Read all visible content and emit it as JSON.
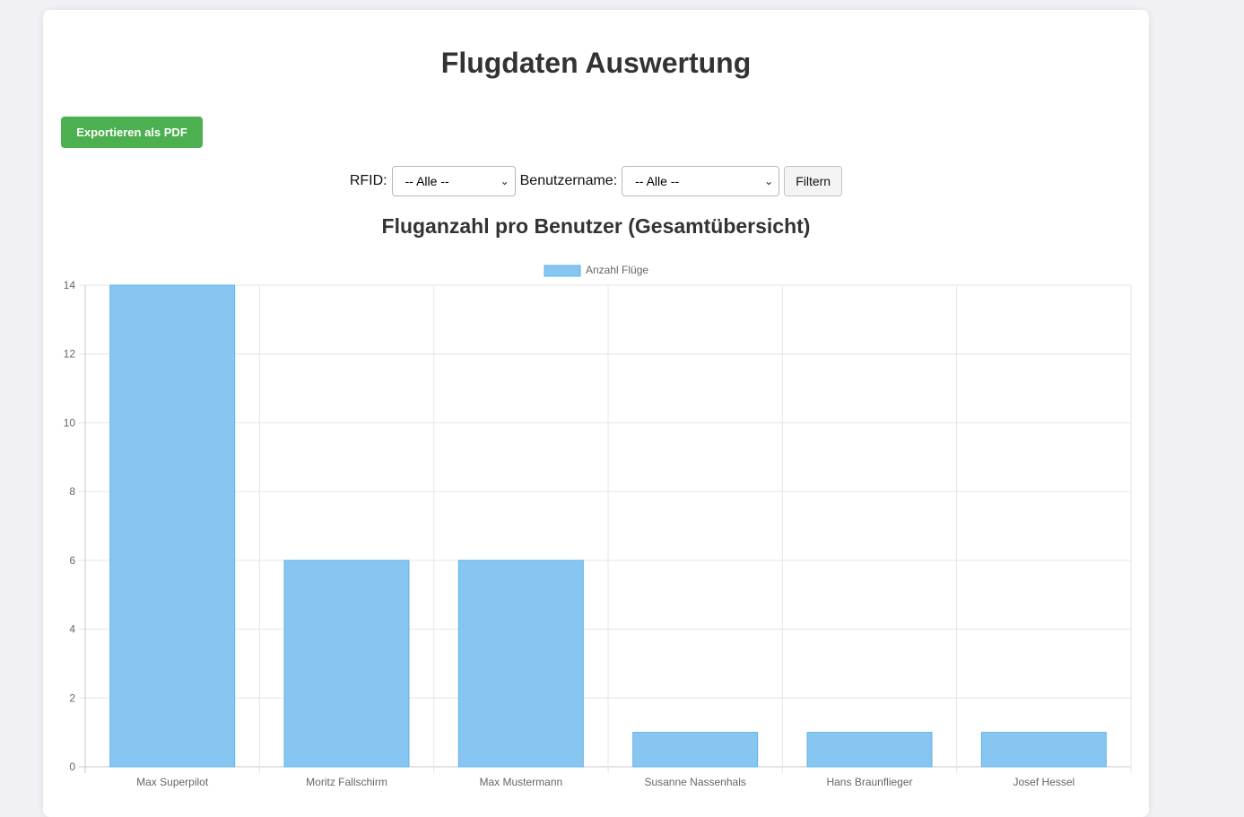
{
  "page": {
    "title": "Flugdaten Auswertung",
    "export_label": "Exportieren als PDF"
  },
  "filters": {
    "rfid_label": "RFID:",
    "rfid_value": "-- Alle --",
    "user_label": "Benutzername:",
    "user_value": "-- Alle --",
    "filter_button": "Filtern"
  },
  "colors": {
    "accent_green": "#4caf50",
    "bar_fill": "#88c6f2",
    "bar_border": "#5fb0e8"
  },
  "chart_data": {
    "type": "bar",
    "title": "Fluganzahl pro Benutzer (Gesamtübersicht)",
    "categories": [
      "Max Superpilot",
      "Moritz Fallschirm",
      "Max Mustermann",
      "Susanne Nassenhals",
      "Hans Braunflieger",
      "Josef Hessel"
    ],
    "series": [
      {
        "name": "Anzahl Flüge",
        "values": [
          14,
          6,
          6,
          1,
          1,
          1
        ]
      }
    ],
    "ylim": [
      0,
      14
    ],
    "yticks": [
      "0",
      "2",
      "4",
      "6",
      "8",
      "10",
      "12",
      "14"
    ],
    "grid": true,
    "legend": "top-center"
  }
}
